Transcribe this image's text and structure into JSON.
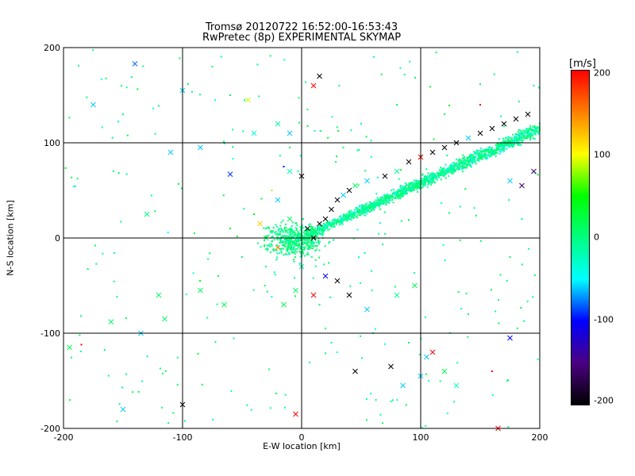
{
  "header": {
    "line1": "Tromsø 20120722 16:52:00-16:53:43",
    "line2": "RwPretec (8p) EXPERIMENTAL SKYMAP"
  },
  "colorbar": {
    "unit": "[m/s]",
    "ticks": [
      "200",
      "100",
      "0",
      "-100",
      "-200"
    ],
    "range": [
      -200,
      200
    ],
    "colors": [
      "#000000",
      "#4b0082",
      "#0000ff",
      "#00ffff",
      "#00ff80",
      "#00ff00",
      "#ffff00",
      "#ff8000",
      "#ff0000"
    ]
  },
  "chart_data": {
    "type": "scatter",
    "title": "Tromsø 20120722 16:52:00-16:53:43",
    "subtitle": "RwPretec (8p) EXPERIMENTAL SKYMAP",
    "xlabel": "E-W location [km]",
    "ylabel": "N-S location [km]",
    "xlim": [
      -200,
      200
    ],
    "ylim": [
      -200,
      200
    ],
    "xticks": [
      "-200",
      "-100",
      "0",
      "100",
      "200"
    ],
    "yticks": [
      "200",
      "100",
      "0",
      "-100",
      "-200"
    ],
    "grid": true,
    "color_variable": "velocity [m/s]",
    "markers": [
      "cross",
      "dot"
    ],
    "main_trail": {
      "x_from": 0,
      "y_from": 0,
      "x_to": 200,
      "y_to": 115,
      "note": "dense band of detections, mostly near 0 m/s (green)"
    },
    "series": [
      {
        "marker": "cross",
        "points": [
          [
            -175,
            140,
            -60
          ],
          [
            -140,
            183,
            -80
          ],
          [
            -100,
            155,
            -60
          ],
          [
            -110,
            90,
            -60
          ],
          [
            -85,
            95,
            -60
          ],
          [
            -60,
            67,
            -90
          ],
          [
            -45,
            145,
            90
          ],
          [
            -40,
            110,
            -30
          ],
          [
            -20,
            120,
            -10
          ],
          [
            -10,
            70,
            -30
          ],
          [
            -20,
            40,
            -60
          ],
          [
            -35,
            15,
            120
          ],
          [
            -30,
            0,
            10
          ],
          [
            -20,
            -10,
            150
          ],
          [
            -10,
            20,
            10
          ],
          [
            0,
            65,
            -200
          ],
          [
            5,
            10,
            -200
          ],
          [
            10,
            0,
            -200
          ],
          [
            15,
            15,
            -200
          ],
          [
            20,
            20,
            -200
          ],
          [
            25,
            30,
            -200
          ],
          [
            30,
            40,
            -200
          ],
          [
            35,
            45,
            -60
          ],
          [
            40,
            50,
            -200
          ],
          [
            45,
            55,
            10
          ],
          [
            55,
            60,
            -60
          ],
          [
            70,
            65,
            -200
          ],
          [
            80,
            70,
            -10
          ],
          [
            90,
            80,
            -200
          ],
          [
            100,
            85,
            200
          ],
          [
            110,
            90,
            -200
          ],
          [
            120,
            95,
            -200
          ],
          [
            130,
            100,
            -200
          ],
          [
            140,
            105,
            -60
          ],
          [
            150,
            110,
            -200
          ],
          [
            160,
            115,
            -200
          ],
          [
            170,
            120,
            -200
          ],
          [
            180,
            125,
            -200
          ],
          [
            190,
            130,
            -200
          ],
          [
            195,
            70,
            -160
          ],
          [
            185,
            55,
            -160
          ],
          [
            175,
            60,
            -60
          ],
          [
            15,
            170,
            -200
          ],
          [
            10,
            160,
            200
          ],
          [
            -10,
            110,
            -60
          ],
          [
            40,
            -60,
            -200
          ],
          [
            45,
            -140,
            -200
          ],
          [
            75,
            -135,
            -200
          ],
          [
            85,
            -155,
            -60
          ],
          [
            100,
            -145,
            -60
          ],
          [
            105,
            -125,
            -60
          ],
          [
            110,
            -120,
            200
          ],
          [
            120,
            -140,
            20
          ],
          [
            130,
            -155,
            -30
          ],
          [
            165,
            -200,
            200
          ],
          [
            175,
            -105,
            -100
          ],
          [
            -100,
            -175,
            -200
          ],
          [
            -135,
            -100,
            -60
          ],
          [
            -150,
            -180,
            -60
          ],
          [
            -195,
            -115,
            20
          ],
          [
            -5,
            -185,
            200
          ],
          [
            0,
            -30,
            -10
          ],
          [
            10,
            -60,
            200
          ],
          [
            20,
            -40,
            -100
          ],
          [
            30,
            -45,
            -200
          ],
          [
            55,
            -75,
            -60
          ],
          [
            80,
            -60,
            -10
          ],
          [
            95,
            -50,
            20
          ],
          [
            -15,
            -70,
            20
          ],
          [
            -5,
            -55,
            10
          ],
          [
            -65,
            -70,
            20
          ],
          [
            -85,
            -55,
            10
          ],
          [
            -120,
            -60,
            10
          ],
          [
            -115,
            -85,
            10
          ],
          [
            -160,
            -88,
            10
          ],
          [
            -130,
            25,
            10
          ]
        ]
      },
      {
        "marker": "dot",
        "points": [
          [
            -185,
            -112,
            200
          ],
          [
            -130,
            25,
            -30
          ],
          [
            -90,
            5,
            30
          ],
          [
            -70,
            -40,
            20
          ],
          [
            -60,
            10,
            40
          ],
          [
            -50,
            -20,
            0
          ],
          [
            -40,
            25,
            50
          ],
          [
            -30,
            -30,
            10
          ],
          [
            -25,
            50,
            80
          ],
          [
            -15,
            75,
            -100
          ],
          [
            -10,
            95,
            30
          ],
          [
            5,
            135,
            0
          ],
          [
            10,
            160,
            200
          ],
          [
            15,
            -70,
            20
          ],
          [
            20,
            -95,
            10
          ],
          [
            25,
            -110,
            -20
          ],
          [
            60,
            -100,
            10
          ],
          [
            90,
            -110,
            20
          ],
          [
            140,
            -80,
            10
          ],
          [
            160,
            -140,
            200
          ],
          [
            175,
            -20,
            10
          ],
          [
            185,
            20,
            0
          ],
          [
            195,
            160,
            -10
          ],
          [
            150,
            140,
            200
          ],
          [
            120,
            130,
            10
          ],
          [
            80,
            140,
            20
          ],
          [
            50,
            120,
            -20
          ],
          [
            35,
            95,
            10
          ],
          [
            -60,
            150,
            20
          ],
          [
            -75,
            180,
            10
          ],
          [
            -150,
            130,
            0
          ]
        ]
      }
    ]
  }
}
